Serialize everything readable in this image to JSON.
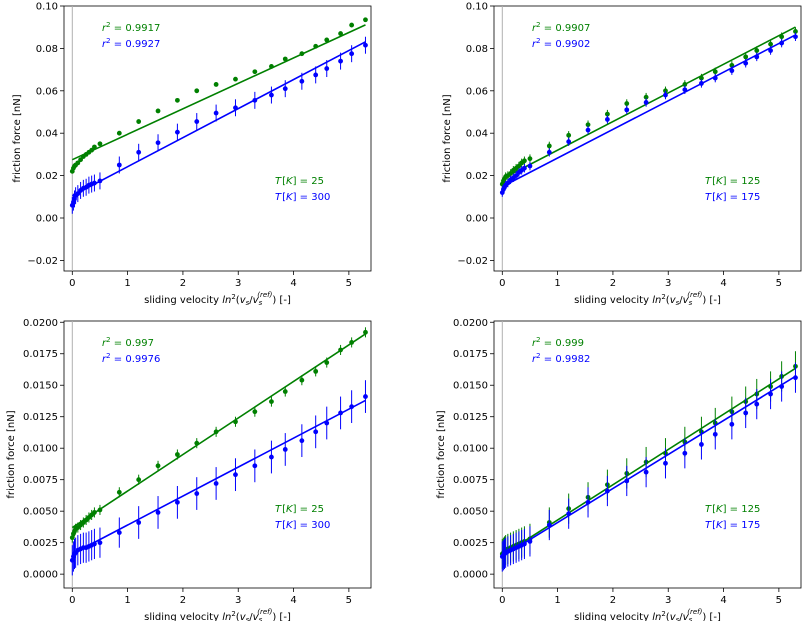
{
  "chart_data": [
    {
      "type": "scatter",
      "panel": "top-left",
      "xlabel_prefix": "sliding velocity ",
      "xlabel_math": "ln²(v_s/v_s^(ref))",
      "xlabel_suffix": " [-]",
      "ylabel": "friction force [nN]",
      "xlim": [
        -0.15,
        5.4
      ],
      "ylim": [
        -0.025,
        0.1
      ],
      "xticks": [
        0,
        1,
        2,
        3,
        4,
        5
      ],
      "xtick_labels": [
        "0",
        "1",
        "2",
        "3",
        "4",
        "5"
      ],
      "yticks": [
        -0.02,
        0,
        0.02,
        0.04,
        0.06,
        0.08,
        0.1
      ],
      "ytick_labels": [
        "−0.02",
        "0.00",
        "0.02",
        "0.04",
        "0.06",
        "0.08",
        "0.10"
      ],
      "vline_x": 0,
      "annotations": {
        "r2_series1": "= 0.9917",
        "r2_series2": "= 0.9927",
        "t_series1": "= 25",
        "t_series2": "= 300"
      },
      "series": [
        {
          "name": "T = 25 K",
          "color": "#008000",
          "x": [
            0,
            0.02,
            0.04,
            0.06,
            0.1,
            0.15,
            0.2,
            0.25,
            0.3,
            0.35,
            0.4,
            0.5,
            0.85,
            1.2,
            1.55,
            1.9,
            2.25,
            2.6,
            2.95,
            3.3,
            3.6,
            3.85,
            4.15,
            4.4,
            4.6,
            4.85,
            5.05,
            5.3
          ],
          "y": [
            0.022,
            0.0235,
            0.0245,
            0.025,
            0.026,
            0.0275,
            0.029,
            0.03,
            0.031,
            0.032,
            0.0335,
            0.035,
            0.04,
            0.0455,
            0.0505,
            0.0555,
            0.06,
            0.063,
            0.0655,
            0.069,
            0.0715,
            0.075,
            0.0775,
            0.081,
            0.084,
            0.087,
            0.091,
            0.0935
          ],
          "err": [
            0.001,
            0.001,
            0.001,
            0.001,
            0.001,
            0.001,
            0.001,
            0.001,
            0.001,
            0.001,
            0.001,
            0.001,
            0.001,
            0.001,
            0.001,
            0.001,
            0.001,
            0.001,
            0.001,
            0.001,
            0.001,
            0.001,
            0.001,
            0.001,
            0.001,
            0.001,
            0.001,
            0.001
          ],
          "fit": [
            0.0275,
            0.012
          ]
        },
        {
          "name": "T = 300 K",
          "color": "#0000ff",
          "x": [
            0,
            0.02,
            0.04,
            0.06,
            0.1,
            0.15,
            0.2,
            0.25,
            0.3,
            0.35,
            0.4,
            0.5,
            0.85,
            1.2,
            1.55,
            1.9,
            2.25,
            2.6,
            2.95,
            3.3,
            3.6,
            3.85,
            4.15,
            4.4,
            4.6,
            4.85,
            5.05,
            5.3
          ],
          "y": [
            0.006,
            0.0075,
            0.009,
            0.0105,
            0.0115,
            0.013,
            0.014,
            0.0145,
            0.0155,
            0.016,
            0.0165,
            0.0175,
            0.025,
            0.031,
            0.0355,
            0.0405,
            0.0455,
            0.0495,
            0.052,
            0.0555,
            0.058,
            0.061,
            0.0645,
            0.0675,
            0.0705,
            0.074,
            0.0775,
            0.0815
          ],
          "err": [
            0.004,
            0.004,
            0.004,
            0.004,
            0.004,
            0.004,
            0.004,
            0.004,
            0.004,
            0.004,
            0.004,
            0.004,
            0.004,
            0.004,
            0.004,
            0.004,
            0.004,
            0.004,
            0.004,
            0.004,
            0.004,
            0.004,
            0.004,
            0.004,
            0.004,
            0.004,
            0.004,
            0.004
          ],
          "fit": [
            0.0105,
            0.0137
          ]
        }
      ]
    },
    {
      "type": "scatter",
      "panel": "top-right",
      "xlabel_prefix": "sliding velocity ",
      "xlabel_math": "ln²(v_s/v_s^(ref))",
      "xlabel_suffix": " [-]",
      "ylabel": "friction force [nN]",
      "xlim": [
        -0.15,
        5.4
      ],
      "ylim": [
        -0.025,
        0.1
      ],
      "xticks": [
        0,
        1,
        2,
        3,
        4,
        5
      ],
      "xtick_labels": [
        "0",
        "1",
        "2",
        "3",
        "4",
        "5"
      ],
      "yticks": [
        -0.02,
        0,
        0.02,
        0.04,
        0.06,
        0.08,
        0.1
      ],
      "ytick_labels": [
        "−0.02",
        "0.00",
        "0.02",
        "0.04",
        "0.06",
        "0.08",
        "0.10"
      ],
      "vline_x": 0,
      "annotations": {
        "r2_series1": "= 0.9907",
        "r2_series2": "= 0.9902",
        "t_series1": "= 125",
        "t_series2": "= 175"
      },
      "series": [
        {
          "name": "T = 125 K",
          "color": "#008000",
          "x": [
            0,
            0.02,
            0.04,
            0.06,
            0.1,
            0.15,
            0.2,
            0.25,
            0.3,
            0.35,
            0.4,
            0.5,
            0.85,
            1.2,
            1.55,
            1.9,
            2.25,
            2.6,
            2.95,
            3.3,
            3.6,
            3.85,
            4.15,
            4.4,
            4.6,
            4.85,
            5.05,
            5.3
          ],
          "y": [
            0.016,
            0.0175,
            0.0185,
            0.0195,
            0.02,
            0.021,
            0.0225,
            0.0235,
            0.0245,
            0.026,
            0.027,
            0.028,
            0.034,
            0.039,
            0.044,
            0.049,
            0.054,
            0.057,
            0.06,
            0.063,
            0.066,
            0.069,
            0.072,
            0.076,
            0.079,
            0.082,
            0.0855,
            0.088
          ],
          "err": [
            0.002,
            0.002,
            0.002,
            0.002,
            0.002,
            0.002,
            0.002,
            0.002,
            0.002,
            0.002,
            0.002,
            0.002,
            0.002,
            0.002,
            0.002,
            0.002,
            0.002,
            0.002,
            0.002,
            0.002,
            0.002,
            0.002,
            0.002,
            0.002,
            0.002,
            0.002,
            0.002,
            0.002
          ],
          "fit": [
            0.0185,
            0.0135
          ]
        },
        {
          "name": "T = 175 K",
          "color": "#0000ff",
          "x": [
            0,
            0.02,
            0.04,
            0.06,
            0.1,
            0.15,
            0.2,
            0.25,
            0.3,
            0.35,
            0.4,
            0.5,
            0.85,
            1.2,
            1.55,
            1.9,
            2.25,
            2.6,
            2.95,
            3.3,
            3.6,
            3.85,
            4.15,
            4.4,
            4.6,
            4.85,
            5.05,
            5.3
          ],
          "y": [
            0.012,
            0.0135,
            0.0145,
            0.0155,
            0.0165,
            0.018,
            0.019,
            0.02,
            0.0215,
            0.0225,
            0.0235,
            0.0245,
            0.031,
            0.036,
            0.0415,
            0.0465,
            0.051,
            0.0545,
            0.058,
            0.0605,
            0.0635,
            0.066,
            0.0695,
            0.073,
            0.076,
            0.079,
            0.0825,
            0.0855
          ],
          "err": [
            0.002,
            0.002,
            0.002,
            0.002,
            0.002,
            0.002,
            0.002,
            0.002,
            0.002,
            0.002,
            0.002,
            0.002,
            0.002,
            0.002,
            0.002,
            0.002,
            0.002,
            0.002,
            0.002,
            0.002,
            0.002,
            0.002,
            0.002,
            0.002,
            0.002,
            0.002,
            0.002,
            0.002
          ],
          "fit": [
            0.0148,
            0.0135
          ]
        }
      ]
    },
    {
      "type": "scatter",
      "panel": "bottom-left",
      "xlabel_prefix": "sliding velocity ",
      "xlabel_math": "ln²(v_s/v_s^(ref))",
      "xlabel_suffix": " [-]",
      "ylabel": "friction force [nN]",
      "xlim": [
        -0.15,
        5.4
      ],
      "ylim": [
        -0.0011,
        0.0201
      ],
      "xticks": [
        0,
        1,
        2,
        3,
        4,
        5
      ],
      "xtick_labels": [
        "0",
        "1",
        "2",
        "3",
        "4",
        "5"
      ],
      "yticks": [
        0,
        0.0025,
        0.005,
        0.0075,
        0.01,
        0.0125,
        0.015,
        0.0175,
        0.02
      ],
      "ytick_labels": [
        "0.0000",
        "0.0025",
        "0.0050",
        "0.0075",
        "0.0100",
        "0.0125",
        "0.0150",
        "0.0175",
        "0.0200"
      ],
      "vline_x": 0,
      "annotations": {
        "r2_series1": "= 0.997",
        "r2_series2": "= 0.9976",
        "t_series1": "= 25",
        "t_series2": "= 300"
      },
      "series": [
        {
          "name": "T = 25 K",
          "color": "#008000",
          "x": [
            0,
            0.02,
            0.04,
            0.06,
            0.1,
            0.15,
            0.2,
            0.25,
            0.3,
            0.35,
            0.4,
            0.5,
            0.85,
            1.2,
            1.55,
            1.9,
            2.25,
            2.6,
            2.95,
            3.3,
            3.6,
            3.85,
            4.15,
            4.4,
            4.6,
            4.85,
            5.05,
            5.3
          ],
          "y": [
            0.0029,
            0.0032,
            0.0034,
            0.0036,
            0.0037,
            0.0039,
            0.0041,
            0.0043,
            0.0045,
            0.0047,
            0.0049,
            0.0051,
            0.0065,
            0.0075,
            0.0086,
            0.0095,
            0.0104,
            0.0113,
            0.0121,
            0.0129,
            0.0137,
            0.0145,
            0.0154,
            0.0161,
            0.0168,
            0.0178,
            0.0184,
            0.0192
          ],
          "err": [
            0.0004,
            0.0004,
            0.0004,
            0.0004,
            0.0004,
            0.0004,
            0.0004,
            0.0004,
            0.0004,
            0.0004,
            0.0004,
            0.0004,
            0.0004,
            0.0004,
            0.0004,
            0.0004,
            0.0004,
            0.0004,
            0.0004,
            0.0004,
            0.0004,
            0.0004,
            0.0004,
            0.0004,
            0.0004,
            0.0004,
            0.0004,
            0.0004
          ],
          "fit": [
            0.0037,
            0.0029
          ]
        },
        {
          "name": "T = 300 K",
          "color": "#0000ff",
          "x": [
            0,
            0.02,
            0.04,
            0.06,
            0.1,
            0.15,
            0.2,
            0.25,
            0.3,
            0.35,
            0.4,
            0.5,
            0.85,
            1.2,
            1.55,
            1.9,
            2.25,
            2.6,
            2.95,
            3.3,
            3.6,
            3.85,
            4.15,
            4.4,
            4.6,
            4.85,
            5.05,
            5.3
          ],
          "y": [
            0.0011,
            0.0014,
            0.0016,
            0.0017,
            0.0019,
            0.002,
            0.0021,
            0.0021,
            0.0022,
            0.0023,
            0.0024,
            0.0025,
            0.0033,
            0.0041,
            0.0049,
            0.0057,
            0.0064,
            0.0072,
            0.0079,
            0.0086,
            0.0093,
            0.0099,
            0.0106,
            0.0113,
            0.012,
            0.0128,
            0.0133,
            0.0141
          ],
          "err": [
            0.0012,
            0.0012,
            0.0012,
            0.0012,
            0.0012,
            0.0012,
            0.0012,
            0.0012,
            0.0012,
            0.0012,
            0.0012,
            0.0012,
            0.0012,
            0.0013,
            0.0013,
            0.0013,
            0.0013,
            0.0013,
            0.0013,
            0.0013,
            0.0013,
            0.0013,
            0.0013,
            0.0013,
            0.0013,
            0.0013,
            0.0013,
            0.0013
          ],
          "fit": [
            0.0016,
            0.0023
          ]
        }
      ]
    },
    {
      "type": "scatter",
      "panel": "bottom-right",
      "xlabel_prefix": "sliding velocity ",
      "xlabel_math": "ln²(v_s/v_s^(ref))",
      "xlabel_suffix": " [-]",
      "ylabel": "friction force [nN]",
      "xlim": [
        -0.15,
        5.4
      ],
      "ylim": [
        -0.0011,
        0.0201
      ],
      "xticks": [
        0,
        1,
        2,
        3,
        4,
        5
      ],
      "xtick_labels": [
        "0",
        "1",
        "2",
        "3",
        "4",
        "5"
      ],
      "yticks": [
        0,
        0.0025,
        0.005,
        0.0075,
        0.01,
        0.0125,
        0.015,
        0.0175,
        0.02
      ],
      "ytick_labels": [
        "0.0000",
        "0.0025",
        "0.0050",
        "0.0075",
        "0.0100",
        "0.0125",
        "0.0150",
        "0.0175",
        "0.0200"
      ],
      "vline_x": 0,
      "annotations": {
        "r2_series1": "= 0.999",
        "r2_series2": "= 0.9982",
        "t_series1": "= 125",
        "t_series2": "= 175"
      },
      "series": [
        {
          "name": "T = 125 K",
          "color": "#008000",
          "x": [
            0,
            0.02,
            0.04,
            0.06,
            0.1,
            0.15,
            0.2,
            0.25,
            0.3,
            0.35,
            0.4,
            0.5,
            0.85,
            1.2,
            1.55,
            1.9,
            2.25,
            2.6,
            2.95,
            3.3,
            3.6,
            3.85,
            4.15,
            4.4,
            4.6,
            4.85,
            5.05,
            5.3
          ],
          "y": [
            0.0016,
            0.0017,
            0.0018,
            0.0019,
            0.002,
            0.0021,
            0.0022,
            0.0023,
            0.0024,
            0.0025,
            0.0026,
            0.0028,
            0.0041,
            0.0052,
            0.0061,
            0.0071,
            0.008,
            0.0089,
            0.0096,
            0.0105,
            0.0113,
            0.012,
            0.0129,
            0.0137,
            0.0143,
            0.0149,
            0.0157,
            0.0165
          ],
          "err": [
            0.0012,
            0.0012,
            0.0012,
            0.0012,
            0.0012,
            0.0012,
            0.0012,
            0.0012,
            0.0012,
            0.0012,
            0.0012,
            0.0012,
            0.0012,
            0.0012,
            0.0012,
            0.0012,
            0.0012,
            0.0012,
            0.0012,
            0.0012,
            0.0012,
            0.0012,
            0.0012,
            0.0012,
            0.0012,
            0.0012,
            0.0012,
            0.0012
          ],
          "fit": [
            0.0015,
            0.0028
          ]
        },
        {
          "name": "T = 175 K",
          "color": "#0000ff",
          "x": [
            0,
            0.02,
            0.04,
            0.06,
            0.1,
            0.15,
            0.2,
            0.25,
            0.3,
            0.35,
            0.4,
            0.5,
            0.85,
            1.2,
            1.55,
            1.9,
            2.25,
            2.6,
            2.95,
            3.3,
            3.6,
            3.85,
            4.15,
            4.4,
            4.6,
            4.85,
            5.05,
            5.3
          ],
          "y": [
            0.0014,
            0.0015,
            0.0016,
            0.0017,
            0.0018,
            0.0019,
            0.002,
            0.0021,
            0.0022,
            0.0023,
            0.0024,
            0.0026,
            0.0039,
            0.0048,
            0.0057,
            0.0066,
            0.0074,
            0.0081,
            0.0088,
            0.0096,
            0.0103,
            0.0111,
            0.0119,
            0.0128,
            0.0135,
            0.0143,
            0.0149,
            0.0156
          ],
          "err": [
            0.0012,
            0.0012,
            0.0012,
            0.0012,
            0.0012,
            0.0012,
            0.0012,
            0.0012,
            0.0012,
            0.0012,
            0.0012,
            0.0012,
            0.0012,
            0.0012,
            0.0012,
            0.0012,
            0.0012,
            0.0012,
            0.0012,
            0.0012,
            0.0012,
            0.0012,
            0.0012,
            0.0012,
            0.0012,
            0.0012,
            0.0012,
            0.0012
          ],
          "fit": [
            0.0014,
            0.0027
          ]
        }
      ]
    }
  ]
}
